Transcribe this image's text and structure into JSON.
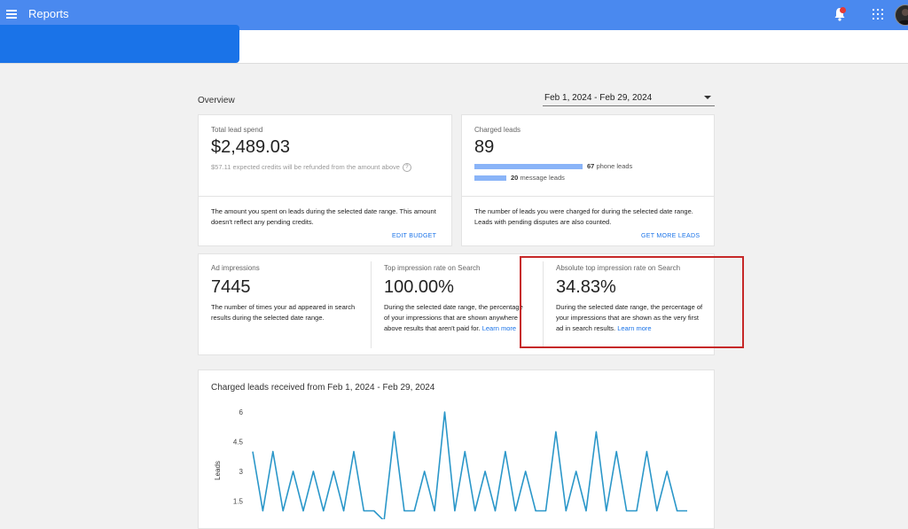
{
  "appbar": {
    "title": "Reports",
    "bg": "#4a89ef"
  },
  "overview": {
    "label": "Overview",
    "date_range": "Feb 1, 2024 - Feb 29, 2024"
  },
  "cards": {
    "spend": {
      "label": "Total lead spend",
      "value": "$2,489.03",
      "note": "$57.11 expected credits will be refunded from the amount above",
      "desc": "The amount you spent on leads during the selected date range. This amount doesn't reflect any pending credits.",
      "action": "EDIT BUDGET"
    },
    "leads": {
      "label": "Charged leads",
      "value": "89",
      "phone_count": "67",
      "phone_text": "phone leads",
      "message_count": "20",
      "message_text": "message leads",
      "desc": "The number of leads you were charged for during the selected date range. Leads with pending disputes are also counted.",
      "action": "GET MORE LEADS"
    },
    "impressions": {
      "label": "Ad impressions",
      "value": "7445",
      "desc": "The number of times your ad appeared in search results during the selected date range."
    },
    "top_rate": {
      "label": "Top impression rate on Search",
      "value": "100.00%",
      "desc": "During the selected date range, the percentage of your impressions that are shown anywhere above results that aren't paid for.",
      "link": "Learn more"
    },
    "abs_top_rate": {
      "label": "Absolute top impression rate on Search",
      "value": "34.83%",
      "desc": "During the selected date range, the percentage of your impressions that are shown as the very first ad in search results.",
      "link": "Learn more"
    }
  },
  "chart_data": {
    "type": "line",
    "title": "Charged leads received from Feb 1, 2024 - Feb 29, 2024",
    "ylabel": "Leads",
    "xlabel": "",
    "ylim": [
      0,
      6
    ],
    "yticks": [
      "6",
      "4.5",
      "3",
      "1.5"
    ],
    "y": [
      4,
      1,
      4,
      1,
      3,
      1,
      3,
      1,
      3,
      1,
      4,
      1,
      1,
      0.5,
      5,
      1,
      1,
      3,
      1,
      6,
      1,
      4,
      1,
      3,
      1,
      4,
      1,
      3,
      1,
      1,
      5,
      1,
      3,
      1,
      5,
      1,
      4,
      1,
      1,
      4,
      1,
      3,
      1,
      1
    ],
    "color": "#2b97c9",
    "grid": false
  }
}
